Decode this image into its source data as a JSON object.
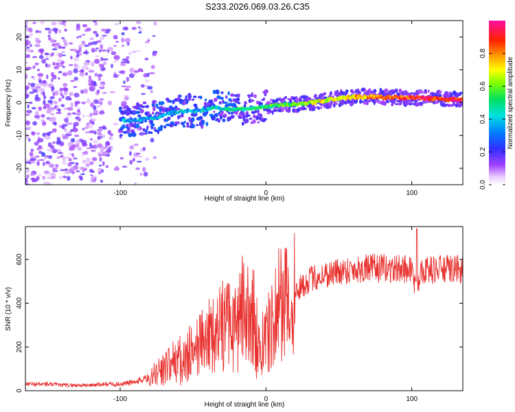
{
  "title": "S233.2026.069.03.26.C35",
  "colors": {
    "trace": "#e8312e",
    "axis": "#000000"
  },
  "chart_data": [
    {
      "type": "heatmap",
      "title": "S233.2026.069.03.26.C35",
      "xlabel": "Height of straight line (km)",
      "ylabel": "Frequency (Hz)",
      "xlim": [
        -165,
        135
      ],
      "ylim": [
        -25,
        25
      ],
      "x_ticks": [
        -100,
        0,
        100
      ],
      "x_tick_labels": [
        "-100",
        "0",
        "100"
      ],
      "y_ticks": [
        -20,
        -10,
        0,
        10,
        20
      ],
      "y_tick_labels": [
        "-20",
        "-10",
        "0",
        "10",
        "20"
      ],
      "colorbar": {
        "label": "Normalized spectral amplitude",
        "range": [
          0,
          1
        ],
        "ticks": [
          0,
          0.2,
          0.4,
          0.6,
          0.8
        ],
        "tick_labels": [
          "0.0",
          "0.2",
          "0.4",
          "0.6",
          "0.8"
        ],
        "colormap": "rainbow (white-violet-blue-cyan-green-yellow-red-magenta)"
      },
      "ridge": {
        "description": "Dominant frequency ridge vs height",
        "x": [
          -95,
          -85,
          -75,
          -65,
          -55,
          -45,
          -35,
          -25,
          -15,
          -5,
          5,
          15,
          25,
          35,
          45,
          55,
          65,
          75,
          85,
          95,
          105,
          115,
          125,
          135
        ],
        "frequency": [
          -5.5,
          -5,
          -4.5,
          -3,
          -2.5,
          -2.5,
          -1.5,
          -2,
          -2,
          -1.5,
          -1,
          -0.5,
          -0.3,
          0.2,
          1,
          1.5,
          1.8,
          1.8,
          1.5,
          1.5,
          1.5,
          1.2,
          1,
          0.8
        ]
      }
    },
    {
      "type": "line",
      "xlabel": "Height of straight line (km)",
      "ylabel": "SNR (10 * v/v)",
      "xlim": [
        -165,
        135
      ],
      "ylim": [
        0,
        750
      ],
      "x_ticks": [
        -100,
        0,
        100
      ],
      "x_tick_labels": [
        "-100",
        "0",
        "100"
      ],
      "y_ticks": [
        0,
        200,
        400,
        600
      ],
      "y_tick_labels": [
        "0",
        "200",
        "400",
        "600"
      ],
      "series": [
        {
          "name": "SNR",
          "color": "#e8312e",
          "x": [
            -165,
            -150,
            -140,
            -130,
            -120,
            -110,
            -100,
            -90,
            -80,
            -70,
            -60,
            -50,
            -40,
            -30,
            -20,
            -10,
            -5,
            0,
            5,
            10,
            20,
            30,
            40,
            50,
            60,
            70,
            80,
            90,
            100,
            103,
            106,
            110,
            120,
            130,
            135
          ],
          "values": [
            30,
            30,
            25,
            25,
            25,
            30,
            30,
            40,
            60,
            100,
            140,
            180,
            240,
            300,
            330,
            350,
            200,
            230,
            300,
            380,
            450,
            510,
            530,
            545,
            555,
            560,
            560,
            555,
            560,
            450,
            560,
            550,
            555,
            555,
            550
          ]
        }
      ]
    }
  ]
}
